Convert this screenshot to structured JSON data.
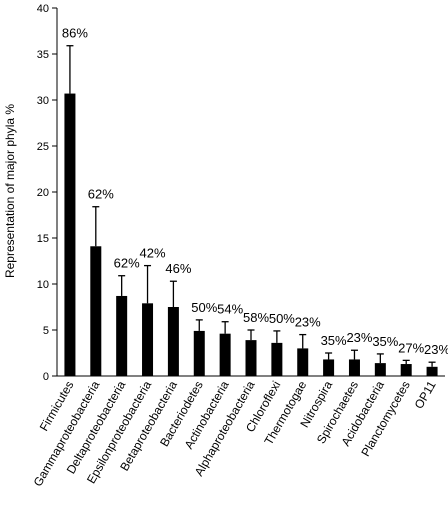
{
  "chart_data": {
    "type": "bar",
    "title": "",
    "xlabel": "",
    "ylabel": "Representation of major phyla %",
    "ylim": [
      0,
      40
    ],
    "yticks": [
      0,
      5,
      10,
      15,
      20,
      25,
      30,
      35,
      40
    ],
    "grid": false,
    "bar_color": "#000000",
    "categories": [
      "Firmicutes",
      "Gammaproteobacteria",
      "Deltaproteobacteria",
      "Epsilonproteobacteria",
      "Betaproteobacteria",
      "Bacteriodetes",
      "Actinobacteria",
      "Alphaproteobacteria",
      "Chloroflexi",
      "Thermotogae",
      "Nitrospira",
      "Spirochaetes",
      "Acidobacteria",
      "Planctomycetes",
      "OP11"
    ],
    "values": [
      30.7,
      14.1,
      8.7,
      7.9,
      7.5,
      4.9,
      4.6,
      3.9,
      3.6,
      3.0,
      1.8,
      1.8,
      1.4,
      1.3,
      1.0
    ],
    "error_upper": [
      35.9,
      18.4,
      10.9,
      12.0,
      10.3,
      6.1,
      5.9,
      5.0,
      4.9,
      4.5,
      2.5,
      2.8,
      2.4,
      1.7,
      1.5
    ],
    "bar_labels": [
      "86%",
      "62%",
      "62%",
      "42%",
      "46%",
      "50%",
      "54%",
      "58%",
      "50%",
      "23%",
      "35%",
      "23%",
      "35%",
      "27%",
      "23%"
    ]
  }
}
